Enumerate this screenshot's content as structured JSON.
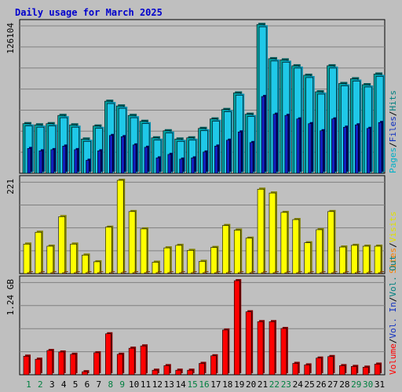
{
  "title": "Daily usage for March 2025",
  "colors": {
    "background": "#bfbfbf",
    "plot_background": "#c0c0c0",
    "title": "#0000cc",
    "grid": "#808080",
    "hits": "#00b0c8",
    "hits_dark": "#007a8a",
    "files": "#1fc8e8",
    "files_dark": "#0050b0",
    "pages": "#1020c0",
    "visits": "#ffff00",
    "visits_dark": "#808000",
    "sites": "#ff8000",
    "volume": "#ff0000",
    "volume_dark": "#800000",
    "weekday_label": "#000000",
    "weekend_label": "#008040"
  },
  "chart_data": [
    {
      "type": "bar",
      "name": "hits-files-pages-panel",
      "max_label": "126104",
      "ylim": [
        0,
        126104
      ],
      "legend": [
        {
          "text": "Pages",
          "color": "#00b0c8"
        },
        {
          "text": "/",
          "color": "#000000"
        },
        {
          "text": "Files",
          "color": "#1030c0"
        },
        {
          "text": "/",
          "color": "#000000"
        },
        {
          "text": "Hits",
          "color": "#008080"
        }
      ],
      "categories": [
        "1",
        "2",
        "3",
        "4",
        "5",
        "6",
        "7",
        "8",
        "9",
        "10",
        "11",
        "12",
        "13",
        "14",
        "15",
        "16",
        "17",
        "18",
        "19",
        "20",
        "21",
        "22",
        "23",
        "24",
        "25",
        "26",
        "27",
        "28",
        "29",
        "30",
        "31"
      ],
      "series": [
        {
          "name": "Hits",
          "values": [
            42000,
            41000,
            42000,
            49000,
            41000,
            29000,
            40000,
            61000,
            57000,
            49000,
            44000,
            30000,
            36000,
            29000,
            30000,
            38000,
            46000,
            54000,
            68000,
            50000,
            126000,
            97000,
            96000,
            91000,
            83000,
            69000,
            91000,
            76000,
            80000,
            75000,
            84000
          ]
        },
        {
          "name": "Files",
          "values": [
            40000,
            39000,
            40000,
            47000,
            39000,
            27000,
            38000,
            59000,
            55000,
            47000,
            42000,
            28000,
            34000,
            27000,
            28000,
            36000,
            44000,
            52000,
            66000,
            48000,
            124000,
            95000,
            94000,
            89000,
            81000,
            67000,
            89000,
            74000,
            78000,
            73000,
            82000
          ]
        },
        {
          "name": "Pages",
          "values": [
            21000,
            19000,
            20000,
            23000,
            20000,
            11000,
            19000,
            32000,
            31000,
            24000,
            22000,
            13000,
            16000,
            12000,
            13000,
            18000,
            23000,
            28000,
            35000,
            26000,
            65000,
            50000,
            49000,
            46000,
            42000,
            36000,
            46000,
            39000,
            41000,
            38000,
            43000
          ]
        }
      ],
      "gridlines": 7
    },
    {
      "type": "bar",
      "name": "visits-sites-panel",
      "max_label": "221",
      "ylim": [
        0,
        221
      ],
      "legend": [
        {
          "text": "Sites",
          "color": "#ff8000"
        },
        {
          "text": "/",
          "color": "#000000"
        },
        {
          "text": "Visits",
          "color": "#e0e000"
        }
      ],
      "categories": [
        "1",
        "2",
        "3",
        "4",
        "5",
        "6",
        "7",
        "8",
        "9",
        "10",
        "11",
        "12",
        "13",
        "14",
        "15",
        "16",
        "17",
        "18",
        "19",
        "20",
        "21",
        "22",
        "23",
        "24",
        "25",
        "26",
        "27",
        "28",
        "29",
        "30",
        "31"
      ],
      "series": [
        {
          "name": "Visits",
          "values": [
            70,
            98,
            65,
            135,
            70,
            44,
            28,
            110,
            221,
            147,
            106,
            27,
            61,
            67,
            55,
            29,
            62,
            114,
            103,
            84,
            200,
            191,
            145,
            128,
            73,
            104,
            147,
            63,
            67,
            65,
            65
          ]
        },
        {
          "name": "Sites",
          "values": [
            2,
            2,
            2,
            2,
            2,
            2,
            2,
            2,
            2,
            2,
            2,
            2,
            2,
            2,
            2,
            2,
            2,
            2,
            2,
            2,
            2,
            2,
            2,
            2,
            2,
            2,
            2,
            2,
            2,
            2,
            2
          ]
        }
      ],
      "gridlines": 4
    },
    {
      "type": "bar",
      "name": "volume-panel",
      "max_label": "1.24 GB",
      "ylim": [
        0,
        1.24
      ],
      "legend": [
        {
          "text": "Volume",
          "color": "#ff0000"
        },
        {
          "text": "/",
          "color": "#000000"
        },
        {
          "text": "Vol. In",
          "color": "#1030c0"
        },
        {
          "text": "/",
          "color": "#000000"
        },
        {
          "text": "Vol. Out",
          "color": "#008080"
        }
      ],
      "categories": [
        "1",
        "2",
        "3",
        "4",
        "5",
        "6",
        "7",
        "8",
        "9",
        "10",
        "11",
        "12",
        "13",
        "14",
        "15",
        "16",
        "17",
        "18",
        "19",
        "20",
        "21",
        "22",
        "23",
        "24",
        "25",
        "26",
        "27",
        "28",
        "29",
        "30",
        "31"
      ],
      "series": [
        {
          "name": "Volume",
          "values": [
            0.245,
            0.205,
            0.32,
            0.3,
            0.27,
            0.04,
            0.29,
            0.54,
            0.27,
            0.35,
            0.38,
            0.06,
            0.12,
            0.06,
            0.06,
            0.15,
            0.25,
            0.59,
            1.24,
            0.83,
            0.7,
            0.7,
            0.61,
            0.15,
            0.13,
            0.22,
            0.24,
            0.12,
            0.11,
            0.1,
            0.14
          ]
        }
      ],
      "gridlines": 4
    }
  ],
  "days": [
    {
      "label": "1",
      "weekend": true
    },
    {
      "label": "2",
      "weekend": true
    },
    {
      "label": "3",
      "weekend": false
    },
    {
      "label": "4",
      "weekend": false
    },
    {
      "label": "5",
      "weekend": false
    },
    {
      "label": "6",
      "weekend": false
    },
    {
      "label": "7",
      "weekend": false
    },
    {
      "label": "8",
      "weekend": true
    },
    {
      "label": "9",
      "weekend": true
    },
    {
      "label": "10",
      "weekend": false
    },
    {
      "label": "11",
      "weekend": false
    },
    {
      "label": "12",
      "weekend": false
    },
    {
      "label": "13",
      "weekend": false
    },
    {
      "label": "14",
      "weekend": false
    },
    {
      "label": "15",
      "weekend": true
    },
    {
      "label": "16",
      "weekend": true
    },
    {
      "label": "17",
      "weekend": false
    },
    {
      "label": "18",
      "weekend": false
    },
    {
      "label": "19",
      "weekend": false
    },
    {
      "label": "20",
      "weekend": false
    },
    {
      "label": "21",
      "weekend": false
    },
    {
      "label": "22",
      "weekend": true
    },
    {
      "label": "23",
      "weekend": true
    },
    {
      "label": "24",
      "weekend": false
    },
    {
      "label": "25",
      "weekend": false
    },
    {
      "label": "26",
      "weekend": false
    },
    {
      "label": "27",
      "weekend": false
    },
    {
      "label": "28",
      "weekend": false
    },
    {
      "label": "29",
      "weekend": true
    },
    {
      "label": "30",
      "weekend": true
    },
    {
      "label": "31",
      "weekend": false
    }
  ]
}
